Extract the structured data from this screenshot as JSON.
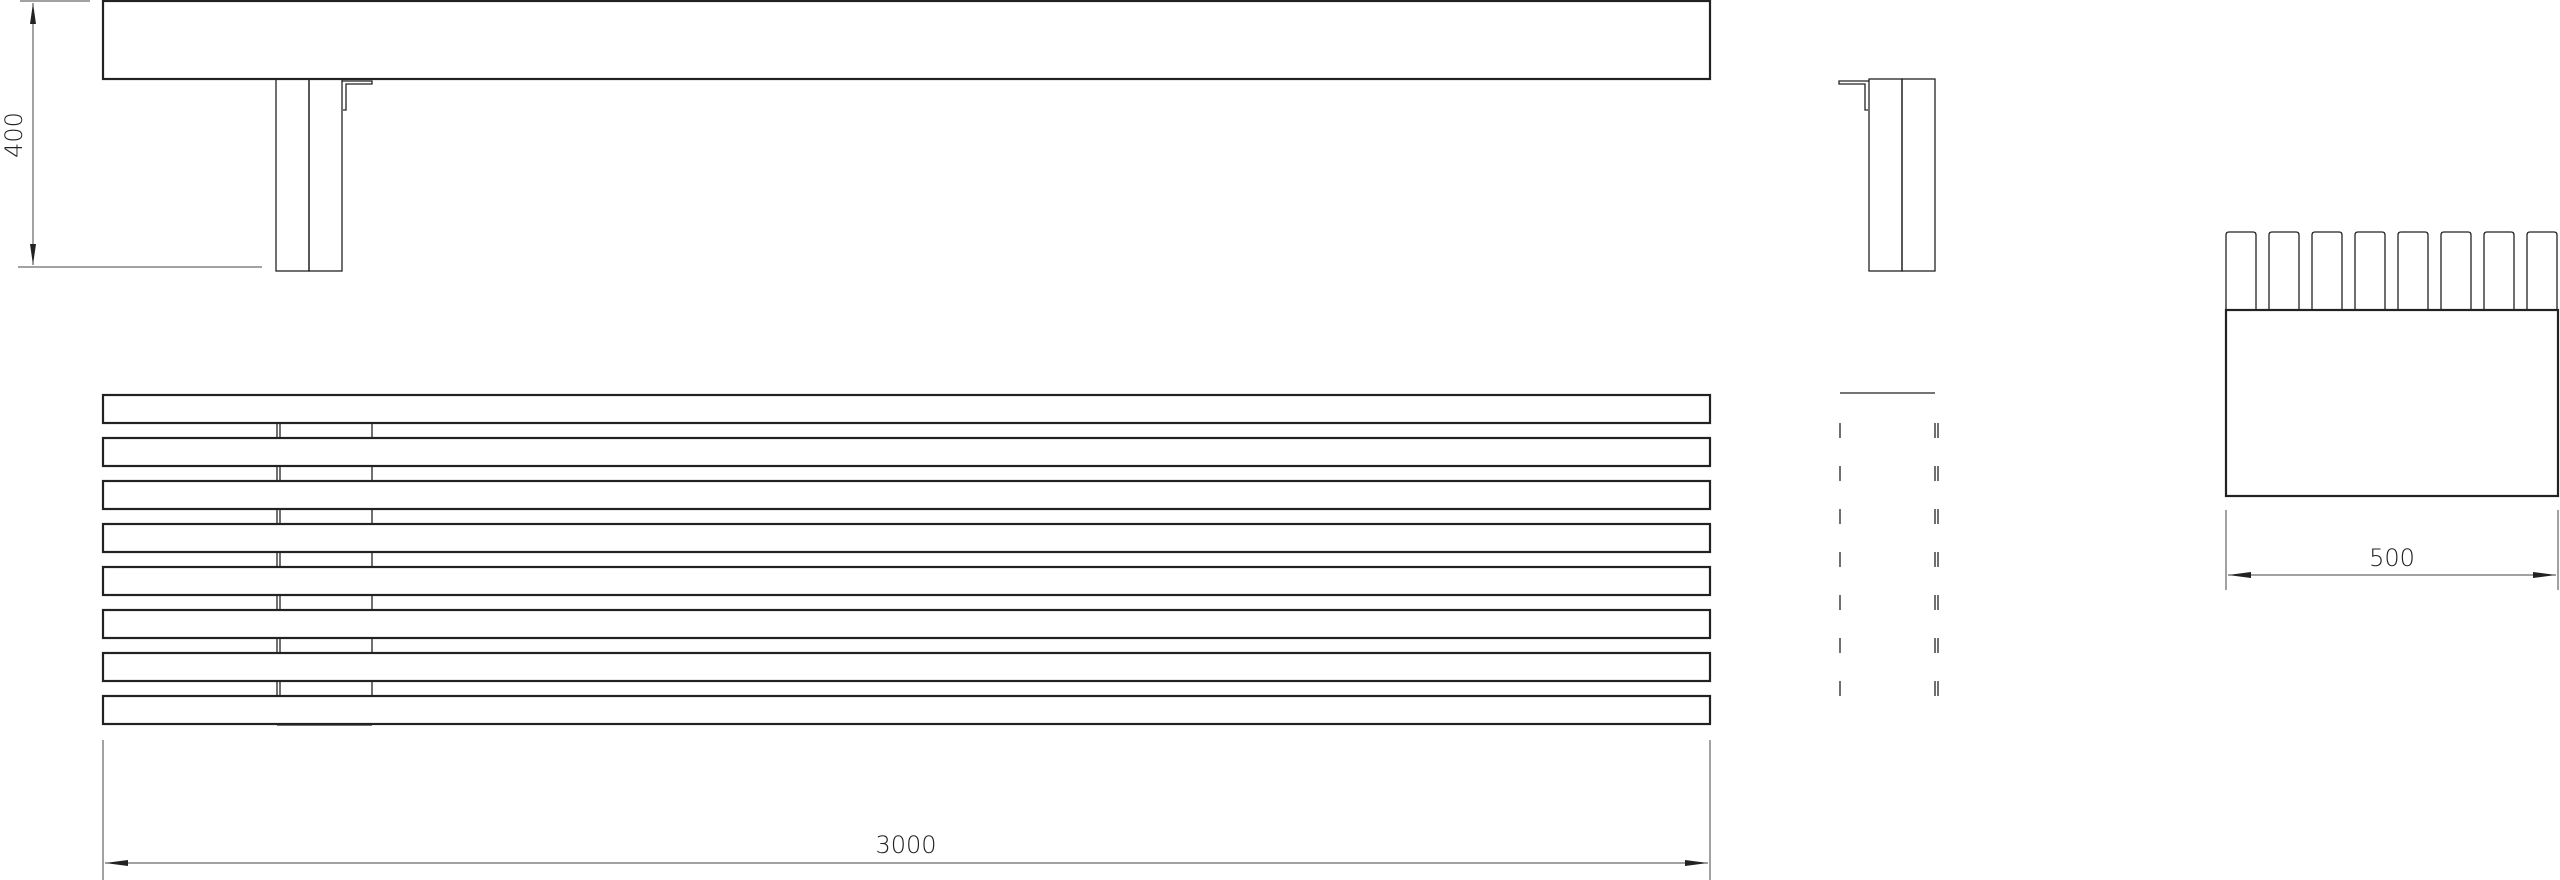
{
  "dimensions": {
    "height": "400",
    "depth": "500",
    "length": "3000"
  },
  "views": [
    "front-elevation",
    "plan",
    "side-elevation"
  ],
  "slat_count": 8,
  "line_color": "#222222"
}
